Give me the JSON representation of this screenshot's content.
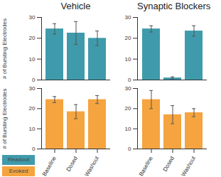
{
  "chart_data": [
    {
      "type": "bar",
      "title": "Vehicle",
      "y_label": "# of Bursting Electrodes",
      "categories": [
        "Baseline",
        "Dosed",
        "Washout"
      ],
      "series": [
        {
          "name": "Readout",
          "color": "#3f9bab",
          "values": [
            24.5,
            22.5,
            20
          ],
          "errors": [
            2.5,
            5.5,
            3.5
          ]
        }
      ],
      "ylim": [
        0,
        30
      ],
      "yticks": [
        0,
        10,
        20,
        30
      ],
      "tick_labels": "y",
      "legend": "bottom left"
    },
    {
      "type": "bar",
      "title": "Synaptic Blockers",
      "categories": [
        "Baseline",
        "Dosed",
        "Washout"
      ],
      "series": [
        {
          "name": "Readout",
          "color": "#3f9bab",
          "values": [
            24.5,
            1,
            23.5
          ],
          "errors": [
            1.5,
            0.5,
            2.5
          ]
        }
      ],
      "ylim": [
        0,
        30
      ],
      "yticks": [
        0,
        10,
        20,
        30
      ],
      "tick_labels": "y",
      "legend": "bottom left"
    },
    {
      "type": "bar",
      "y_label": "# of Bursting Electrodes",
      "categories": [
        "Baseline",
        "Dosed",
        "Washout"
      ],
      "series": [
        {
          "name": "Evoked",
          "color": "#f5a43f",
          "values": [
            24.5,
            18.5,
            24.5
          ],
          "errors": [
            1.5,
            3.5,
            2
          ]
        }
      ],
      "ylim": [
        0,
        30
      ],
      "yticks": [
        0,
        10,
        20,
        30
      ],
      "legend": "bottom left"
    },
    {
      "type": "bar",
      "categories": [
        "Baseline",
        "Dosed",
        "Washout"
      ],
      "series": [
        {
          "name": "Evoked",
          "color": "#f5a43f",
          "values": [
            24.5,
            17,
            18
          ],
          "errors": [
            4.5,
            4.5,
            2
          ]
        }
      ],
      "ylim": [
        0,
        30
      ],
      "yticks": [
        0,
        10,
        20,
        30
      ],
      "legend": "bottom left"
    }
  ]
}
